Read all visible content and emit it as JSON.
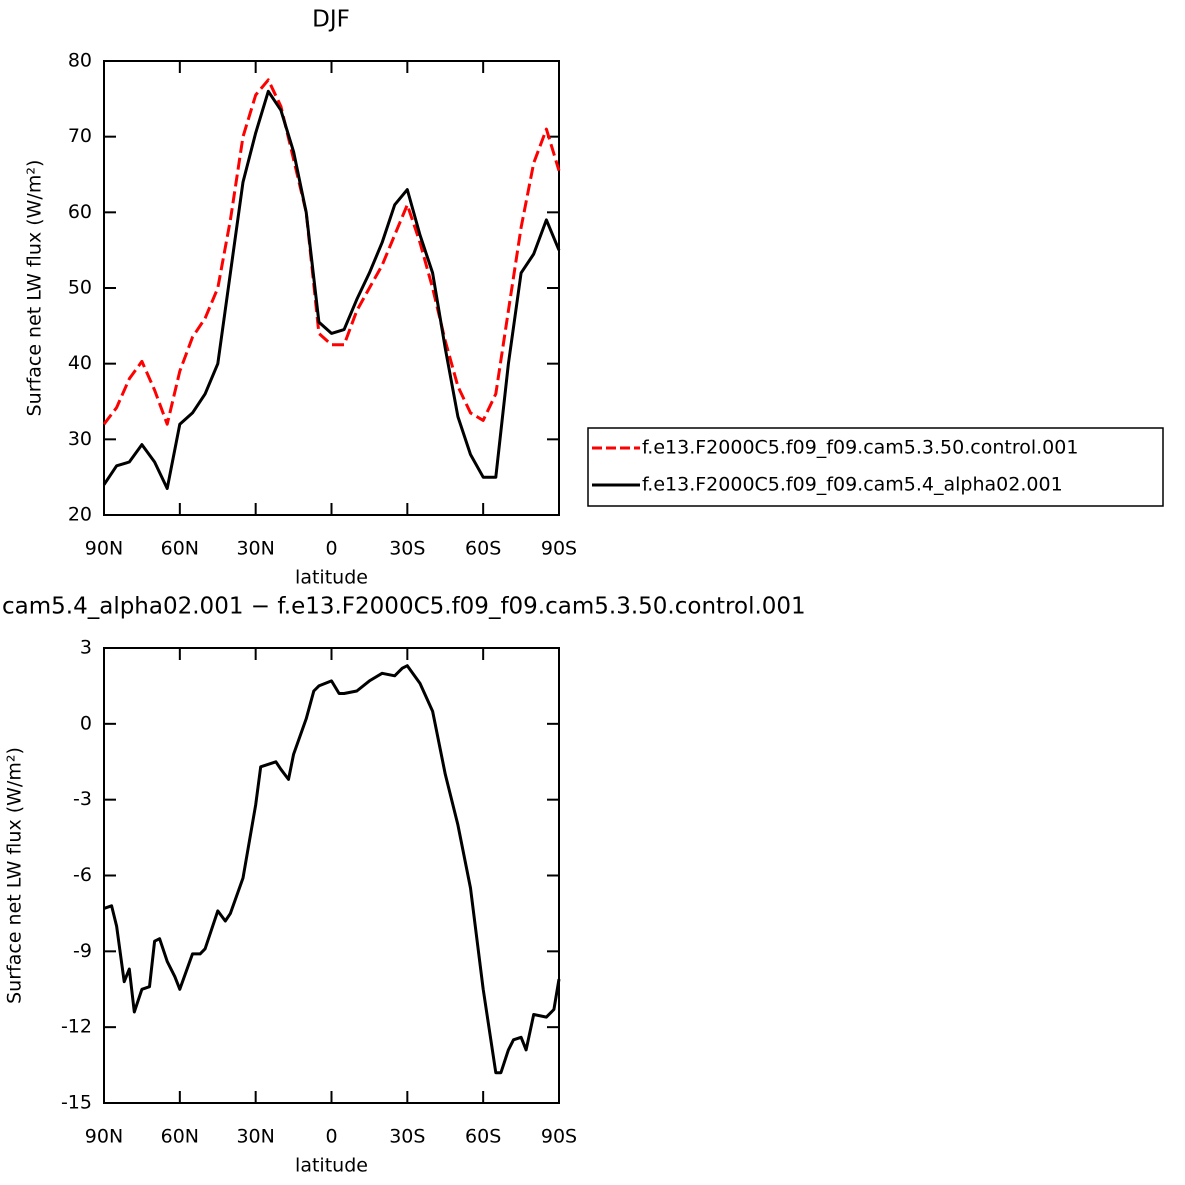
{
  "chart_data": [
    {
      "type": "line",
      "title": "DJF",
      "xlabel": "latitude",
      "ylabel": "Surface net LW flux (W/m²)",
      "xlim": [
        90,
        -90
      ],
      "xticks": [
        {
          "value": 90,
          "label": "90N"
        },
        {
          "value": 60,
          "label": "60N"
        },
        {
          "value": 30,
          "label": "30N"
        },
        0,
        {
          "value": -30,
          "label": "30S"
        },
        {
          "value": -60,
          "label": "60S"
        },
        {
          "value": -90,
          "label": "90S"
        }
      ],
      "ylim": [
        20,
        80
      ],
      "yticks": [
        20,
        30,
        40,
        50,
        60,
        70,
        80
      ],
      "x": [
        90,
        85,
        80,
        75,
        70,
        65,
        60,
        55,
        50,
        45,
        40,
        35,
        30,
        25,
        20,
        15,
        10,
        5,
        0,
        -5,
        -10,
        -15,
        -20,
        -25,
        -30,
        -35,
        -40,
        -45,
        -50,
        -55,
        -60,
        -65,
        -70,
        -75,
        -80,
        -85,
        -90
      ],
      "series": [
        {
          "name": "f.e13.F2000C5.f09_f09.cam5.3.50.control.001",
          "color": "#ff0000",
          "dash": true,
          "values": [
            32,
            34.2,
            38,
            40.3,
            36.5,
            32,
            39,
            43.5,
            46,
            50,
            59,
            70,
            75.5,
            77.5,
            74,
            67,
            60,
            44,
            42.5,
            42.5,
            47,
            50,
            53,
            57,
            61,
            56,
            50,
            43,
            37,
            33.5,
            32.5,
            36,
            47,
            58,
            66.5,
            71,
            65.5
          ]
        },
        {
          "name": "f.e13.F2000C5.f09_f09.cam5.4_alpha02.001",
          "color": "#000000",
          "dash": false,
          "values": [
            24,
            26.5,
            27,
            29.3,
            27,
            23.5,
            32,
            33.5,
            36,
            40,
            52,
            64,
            70.5,
            76,
            73.5,
            68,
            60,
            45.5,
            44,
            44.5,
            48.5,
            52,
            56,
            61,
            63,
            57,
            52,
            42,
            33,
            28,
            25,
            25,
            40,
            52,
            54.5,
            59,
            55
          ]
        }
      ]
    },
    {
      "type": "line",
      "title": "cam5.4_alpha02.001 − f.e13.F2000C5.f09_f09.cam5.3.50.control.001",
      "xlabel": "latitude",
      "ylabel": "Surface net LW flux (W/m²)",
      "xlim": [
        90,
        -90
      ],
      "xticks": [
        {
          "value": 90,
          "label": "90N"
        },
        {
          "value": 60,
          "label": "60N"
        },
        {
          "value": 30,
          "label": "30N"
        },
        0,
        {
          "value": -30,
          "label": "30S"
        },
        {
          "value": -60,
          "label": "60S"
        },
        {
          "value": -90,
          "label": "90S"
        }
      ],
      "ylim": [
        -15,
        3
      ],
      "yticks": [
        -15,
        -12,
        -9,
        -6,
        -3,
        0,
        3
      ],
      "x": [
        90,
        87,
        85,
        82,
        80,
        78,
        75,
        72,
        70,
        68,
        65,
        62,
        60,
        55,
        52,
        50,
        45,
        42,
        40,
        35,
        30,
        28,
        25,
        22,
        20,
        17,
        15,
        10,
        7,
        5,
        0,
        -3,
        -5,
        -10,
        -15,
        -20,
        -25,
        -28,
        -30,
        -35,
        -40,
        -45,
        -50,
        -55,
        -60,
        -65,
        -67,
        -70,
        -72,
        -75,
        -77,
        -80,
        -85,
        -88,
        -90
      ],
      "series": [
        {
          "color": "#000000",
          "dash": false,
          "values": [
            -7.3,
            -7.2,
            -8,
            -10.2,
            -9.7,
            -11.4,
            -10.5,
            -10.4,
            -8.6,
            -8.5,
            -9.4,
            -10,
            -10.5,
            -9.1,
            -9.1,
            -8.9,
            -7.4,
            -7.8,
            -7.5,
            -6.1,
            -3.2,
            -1.7,
            -1.6,
            -1.5,
            -1.8,
            -2.2,
            -1.2,
            0.2,
            1.3,
            1.5,
            1.7,
            1.2,
            1.2,
            1.3,
            1.7,
            2.0,
            1.9,
            2.2,
            2.3,
            1.6,
            0.5,
            -2.0,
            -4.0,
            -6.5,
            -10.5,
            -13.8,
            -13.8,
            -12.9,
            -12.5,
            -12.4,
            -12.9,
            -11.5,
            -11.6,
            -11.3,
            -10.1
          ]
        }
      ]
    }
  ]
}
